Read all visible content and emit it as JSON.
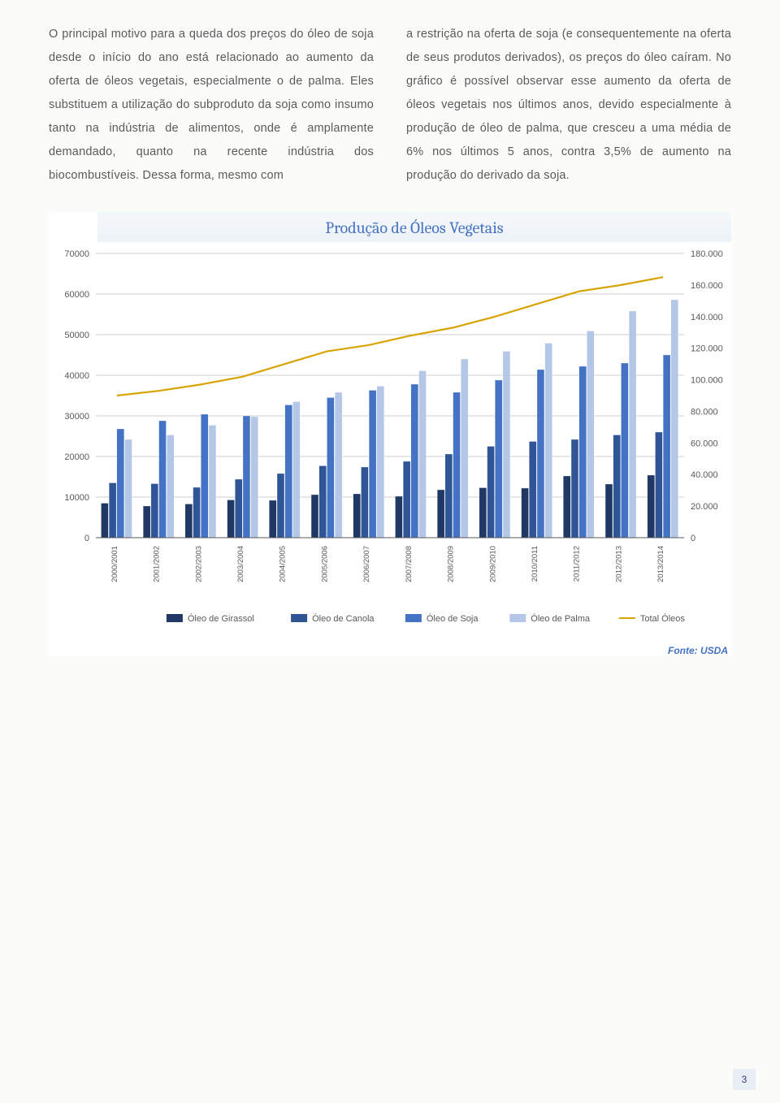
{
  "text": {
    "col1": "O principal motivo para a queda dos preços do óleo de soja desde o início do ano está relacionado ao aumento da oferta de óleos vegetais, especialmente o de palma. Eles substituem a utilização do subproduto da soja como insumo tanto na indústria de alimentos, onde é amplamente demandado, quanto na recente indústria dos biocombustíveis. Dessa forma, mesmo com",
    "col2": "a restrição na oferta de soja (e consequentemente na oferta de seus produtos derivados), os preços do óleo caíram. No gráfico é possível observar esse aumento da oferta de óleos vegetais nos últimos anos, devido especialmente à produção de óleo de palma, que cresceu a uma média de 6% nos últimos 5 anos, contra 3,5% de aumento na produção do derivado da soja."
  },
  "chart": {
    "title": "Produção de Óleos Vegetais",
    "fonte": "Fonte: USDA",
    "background": "#ffffff",
    "grid_color": "#bfbfbf",
    "title_color": "#4472c4",
    "title_fontsize": 20,
    "categories": [
      "2000/2001",
      "2001/2002",
      "2002/2003",
      "2003/2004",
      "2004/2005",
      "2005/2006",
      "2006/2007",
      "2007/2008",
      "2008/2009",
      "2009/2010",
      "2010/2011",
      "2011/2012",
      "2012/2013",
      "2013/2014"
    ],
    "y_left": {
      "min": 0,
      "max": 70000,
      "step": 10000
    },
    "y_right": {
      "min": 0,
      "max": 180000,
      "step": 20000
    },
    "series": [
      {
        "name": "Óleo de Girassol",
        "type": "bar",
        "color": "#1f3864",
        "data": [
          8500,
          7800,
          8300,
          9300,
          9200,
          10600,
          10800,
          10200,
          11800,
          12300,
          12200,
          15200,
          13200,
          15400
        ]
      },
      {
        "name": "Óleo de Canola",
        "type": "bar",
        "color": "#2f5597",
        "data": [
          13500,
          13300,
          12400,
          14400,
          15800,
          17700,
          17400,
          18800,
          20600,
          22500,
          23700,
          24200,
          25300,
          26000
        ]
      },
      {
        "name": "Óleo de Soja",
        "type": "bar",
        "color": "#4472c4",
        "data": [
          26800,
          28800,
          30400,
          30000,
          32700,
          34500,
          36300,
          37800,
          35800,
          38800,
          41400,
          42200,
          43000,
          45000
        ]
      },
      {
        "name": "Óleo de Palma",
        "type": "bar",
        "color": "#b4c7e7",
        "data": [
          24200,
          25300,
          27700,
          29800,
          33500,
          35800,
          37300,
          41100,
          44000,
          45900,
          47900,
          50900,
          55800,
          58600
        ]
      },
      {
        "name": "Total Óleos",
        "type": "line",
        "color": "#d9a300",
        "data": [
          90000,
          93000,
          97000,
          102000,
          110000,
          118000,
          122000,
          128000,
          133000,
          140000,
          148000,
          156000,
          160000,
          165000
        ],
        "axis": "right",
        "stroke_width": 2.2
      }
    ],
    "legend_fontsize": 11,
    "axis_fontsize": 11,
    "category_fontsize": 9.5
  },
  "pagenum": "3"
}
